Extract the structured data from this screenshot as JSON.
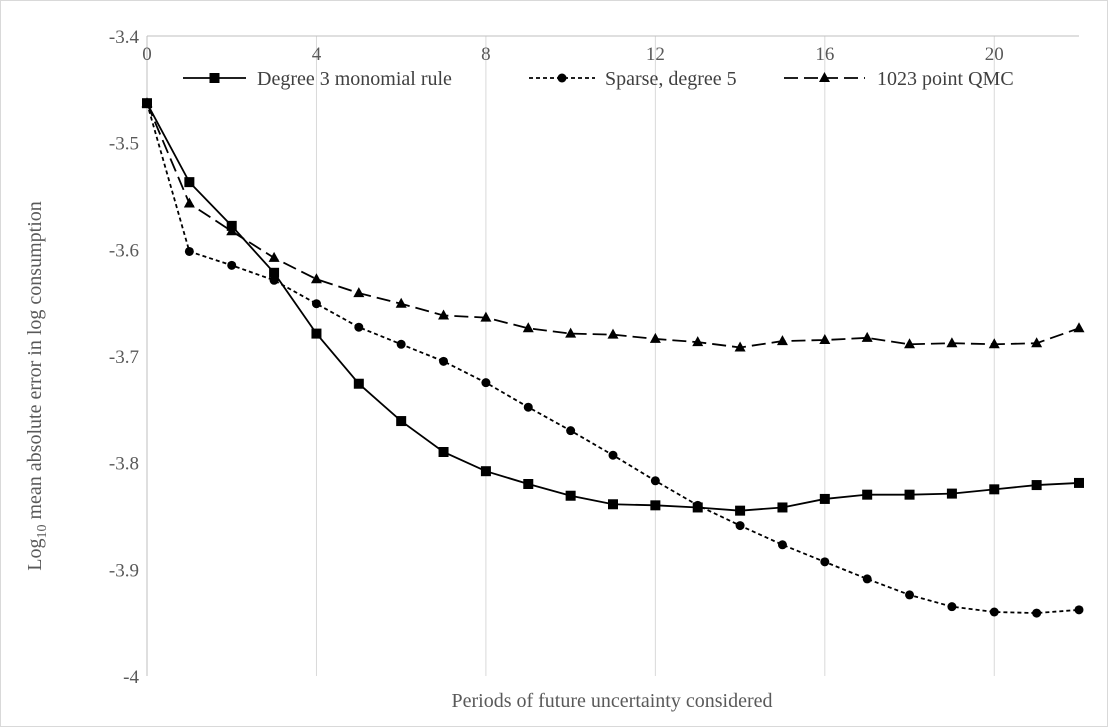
{
  "chart_data": {
    "type": "line",
    "xlabel": "Periods of future uncertainty considered",
    "ylabel_prefix": "Log",
    "ylabel_sub": "10",
    "ylabel_rest": " mean absolute error in log consumption",
    "xlim": [
      0,
      22
    ],
    "ylim": [
      -4,
      -3.4
    ],
    "x_ticks": [
      0,
      4,
      8,
      12,
      16,
      20
    ],
    "x_tick_labels": [
      "0",
      "4",
      "8",
      "12",
      "16",
      "20"
    ],
    "y_ticks": [
      -3.4,
      -3.5,
      -3.6,
      -3.7,
      -3.8,
      -3.9,
      -4
    ],
    "y_tick_labels": [
      "-3.4",
      "-3.5",
      "-3.6",
      "-3.7",
      "-3.8",
      "-3.9",
      "-4"
    ],
    "grid": "vertical",
    "x_axis_position": "top",
    "legend_position": "top",
    "x": [
      0,
      1,
      2,
      3,
      4,
      5,
      6,
      7,
      8,
      9,
      10,
      11,
      12,
      13,
      14,
      15,
      16,
      17,
      18,
      19,
      20,
      21,
      22
    ],
    "series": [
      {
        "name": "Degree 3 monomial rule",
        "style": "solid",
        "marker": "square",
        "color": "#000000",
        "values": [
          -3.463,
          -3.537,
          -3.578,
          -3.622,
          -3.679,
          -3.726,
          -3.761,
          -3.79,
          -3.808,
          -3.82,
          -3.831,
          -3.839,
          -3.84,
          -3.842,
          -3.845,
          -3.842,
          -3.834,
          -3.83,
          -3.83,
          -3.829,
          -3.825,
          -3.821,
          -3.819
        ]
      },
      {
        "name": "Sparse, degree 5",
        "style": "dotted",
        "marker": "circle",
        "color": "#000000",
        "values": [
          -3.463,
          -3.602,
          -3.615,
          -3.629,
          -3.651,
          -3.673,
          -3.689,
          -3.705,
          -3.725,
          -3.748,
          -3.77,
          -3.793,
          -3.817,
          -3.84,
          -3.859,
          -3.877,
          -3.893,
          -3.909,
          -3.924,
          -3.935,
          -3.94,
          -3.941,
          -3.938
        ]
      },
      {
        "name": "1023 point QMC",
        "style": "dashed",
        "marker": "triangle",
        "color": "#000000",
        "values": [
          -3.463,
          -3.557,
          -3.583,
          -3.608,
          -3.628,
          -3.641,
          -3.651,
          -3.662,
          -3.664,
          -3.674,
          -3.679,
          -3.68,
          -3.684,
          -3.687,
          -3.692,
          -3.686,
          -3.685,
          -3.683,
          -3.689,
          -3.688,
          -3.689,
          -3.688,
          -3.674
        ]
      }
    ]
  }
}
